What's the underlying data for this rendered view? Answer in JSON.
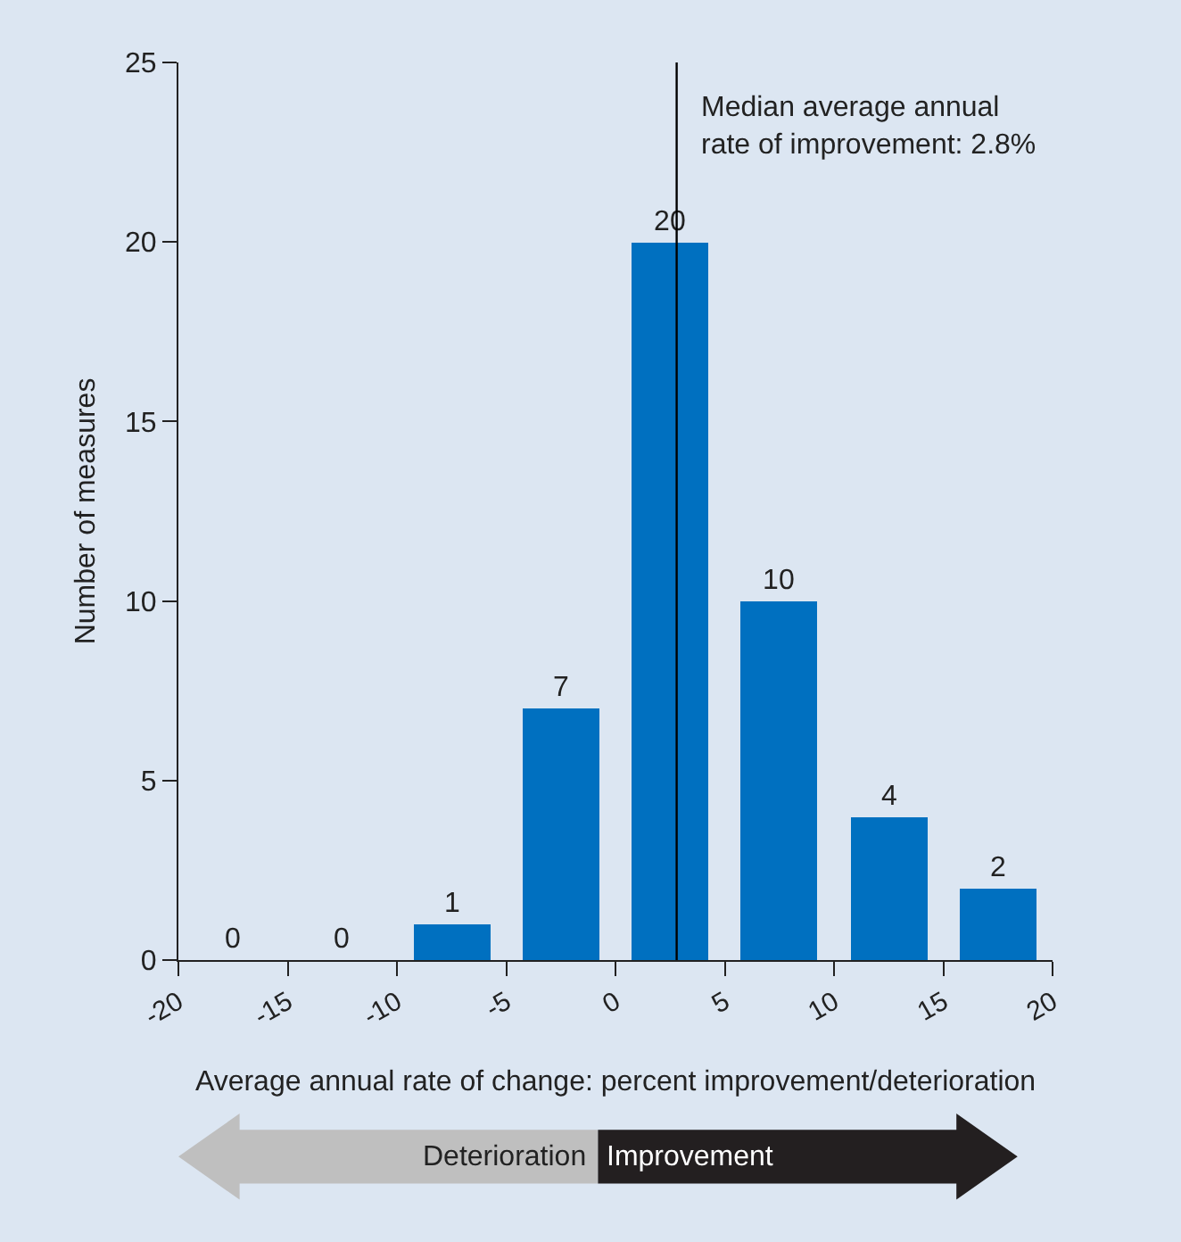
{
  "chart_data": {
    "type": "histogram",
    "bins": [
      -20,
      -15,
      -10,
      -5,
      0,
      5,
      10,
      15,
      20
    ],
    "values": [
      0,
      0,
      1,
      7,
      20,
      10,
      4,
      2
    ],
    "color": "#0070c0",
    "xlabel": "Average annual rate of change: percent improvement/deterioration",
    "ylabel": "Number of measures",
    "xlim": [
      -20,
      20
    ],
    "xticks": [
      -20,
      -15,
      -10,
      -5,
      0,
      5,
      10,
      15,
      20
    ],
    "ylim": [
      0,
      25
    ],
    "yticks": [
      0,
      5,
      10,
      15,
      20,
      25
    ],
    "data_labels": true,
    "grid": false,
    "ref_lines": [
      {
        "axis": "x",
        "value": 2.8,
        "label": "Median average annual rate of improvement: 2.8%",
        "color": "#000000"
      }
    ],
    "annotations": [
      "Deterioration",
      "Improvement"
    ]
  }
}
